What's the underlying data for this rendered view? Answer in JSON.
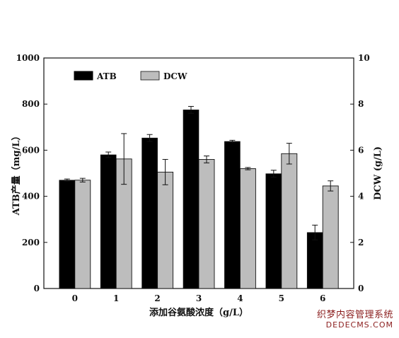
{
  "chart_data": {
    "type": "bar",
    "categories": [
      "0",
      "1",
      "2",
      "3",
      "4",
      "5",
      "6"
    ],
    "xlabel": "添加谷氨酸浓度（g/L）",
    "ylabel": "ATB产量（mg/L）",
    "y2label": "DCW (g/L)",
    "ylim": [
      0,
      1000
    ],
    "y2lim": [
      0,
      10
    ],
    "yticks": [
      0,
      200,
      400,
      600,
      800,
      1000
    ],
    "y2ticks": [
      0,
      2,
      4,
      6,
      8,
      10
    ],
    "legend_position": "top-left",
    "grid": false,
    "series": [
      {
        "name": "ATB",
        "axis": "left",
        "color": "#000000",
        "values": [
          470,
          580,
          653,
          775,
          638,
          498,
          243
        ],
        "errors": [
          5,
          12,
          15,
          15,
          5,
          15,
          32
        ]
      },
      {
        "name": "DCW",
        "axis": "right",
        "color": "#bdbdbd",
        "values": [
          4.7,
          5.62,
          5.05,
          5.6,
          5.2,
          5.85,
          4.45
        ],
        "errors": [
          0.08,
          1.1,
          0.55,
          0.15,
          0.05,
          0.45,
          0.22
        ]
      }
    ]
  },
  "watermark": {
    "line1": "织梦内容管理系统",
    "line2": "DEDECMS.COM"
  }
}
